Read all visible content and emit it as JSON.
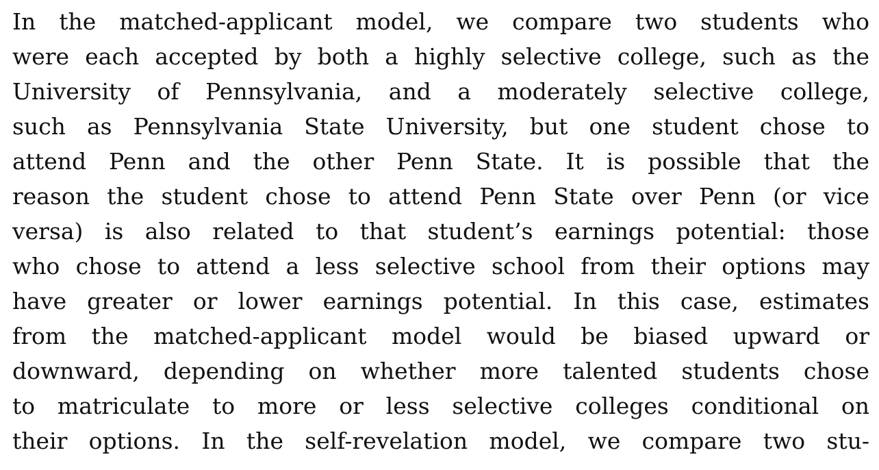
{
  "paragraph": {
    "lines": [
      "In the matched-applicant model, we compare two students who",
      "were each accepted by both a highly selective college, such as the",
      "University of Pennsylvania, and a moderately selective college,",
      "such as Pennsylvania State University, but one student chose to",
      "attend Penn and the other Penn State. It is possible that the",
      "reason the student chose to attend Penn State over Penn (or vice",
      "versa) is also related to that student’s earnings potential: those",
      "who chose to attend a less selective school from their options may",
      "have greater or lower earnings potential. In this case, estimates",
      "from the matched-applicant model would be biased upward or",
      "downward, depending on whether more talented students chose",
      "to matriculate to more or less selective colleges conditional on",
      "their options. In the self-revelation model, we compare two stu-"
    ]
  }
}
